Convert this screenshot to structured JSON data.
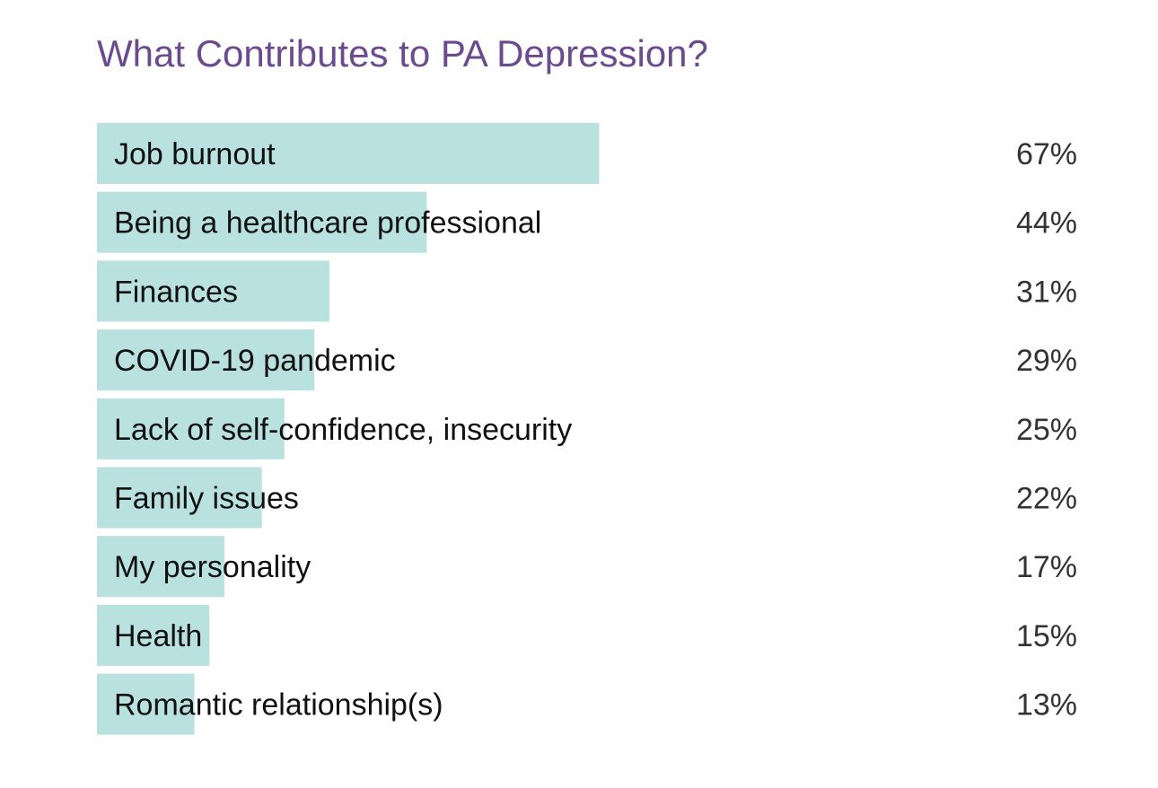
{
  "chart_data": {
    "type": "bar",
    "orientation": "horizontal",
    "title": "What Contributes to PA Depression?",
    "categories": [
      "Job burnout",
      "Being a healthcare professional",
      "Finances",
      "COVID-19 pandemic",
      "Lack of self-confidence, insecurity",
      "Family issues",
      "My personality",
      "Health",
      "Romantic relationship(s)"
    ],
    "values": [
      67,
      44,
      31,
      29,
      25,
      22,
      17,
      15,
      13
    ],
    "value_labels": [
      "67%",
      "44%",
      "31%",
      "29%",
      "25%",
      "22%",
      "17%",
      "15%",
      "13%"
    ],
    "xlim": [
      0,
      100
    ],
    "grid": false,
    "bar_color": "#b8e1e0",
    "title_color": "#6b4a8e"
  }
}
